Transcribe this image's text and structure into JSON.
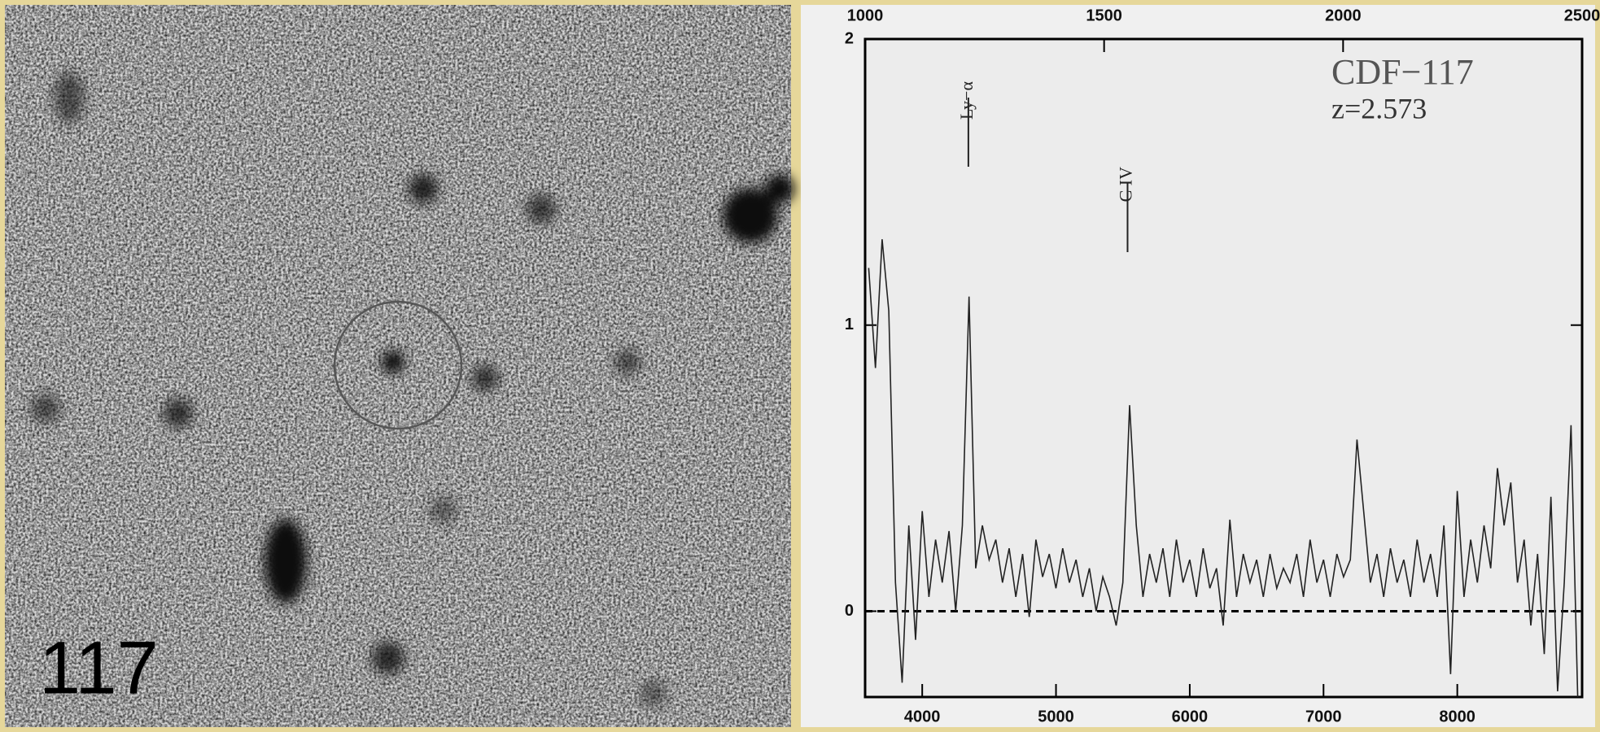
{
  "image_label": "117",
  "chart_data": {
    "type": "line",
    "title": "CDF−117",
    "subtitle": "z=2.573",
    "x": [
      3600,
      3650,
      3700,
      3750,
      3800,
      3850,
      3900,
      3950,
      4000,
      4050,
      4100,
      4150,
      4200,
      4250,
      4300,
      4350,
      4400,
      4450,
      4500,
      4550,
      4600,
      4650,
      4700,
      4750,
      4800,
      4850,
      4900,
      4950,
      5000,
      5050,
      5100,
      5150,
      5200,
      5250,
      5300,
      5350,
      5400,
      5450,
      5500,
      5550,
      5600,
      5650,
      5700,
      5750,
      5800,
      5850,
      5900,
      5950,
      6000,
      6050,
      6100,
      6150,
      6200,
      6250,
      6300,
      6350,
      6400,
      6450,
      6500,
      6550,
      6600,
      6650,
      6700,
      6750,
      6800,
      6850,
      6900,
      6950,
      7000,
      7050,
      7100,
      7150,
      7200,
      7250,
      7300,
      7350,
      7400,
      7450,
      7500,
      7550,
      7600,
      7650,
      7700,
      7750,
      7800,
      7850,
      7900,
      7950,
      8000,
      8050,
      8100,
      8150,
      8200,
      8250,
      8300,
      8350,
      8400,
      8450,
      8500,
      8550,
      8600,
      8650,
      8700,
      8750,
      8800,
      8850,
      8900
    ],
    "values": [
      1.2,
      0.85,
      1.3,
      1.05,
      0.1,
      -0.25,
      0.3,
      -0.1,
      0.35,
      0.05,
      0.25,
      0.1,
      0.28,
      0.0,
      0.3,
      1.1,
      0.15,
      0.3,
      0.18,
      0.25,
      0.1,
      0.22,
      0.05,
      0.2,
      -0.02,
      0.25,
      0.12,
      0.2,
      0.08,
      0.22,
      0.1,
      0.18,
      0.05,
      0.15,
      0.0,
      0.12,
      0.05,
      -0.05,
      0.1,
      0.72,
      0.3,
      0.05,
      0.2,
      0.1,
      0.22,
      0.05,
      0.25,
      0.1,
      0.18,
      0.05,
      0.22,
      0.08,
      0.15,
      -0.05,
      0.32,
      0.05,
      0.2,
      0.1,
      0.18,
      0.05,
      0.2,
      0.08,
      0.15,
      0.1,
      0.2,
      0.05,
      0.25,
      0.1,
      0.18,
      0.05,
      0.2,
      0.12,
      0.18,
      0.6,
      0.35,
      0.1,
      0.2,
      0.05,
      0.22,
      0.1,
      0.18,
      0.05,
      0.25,
      0.1,
      0.2,
      0.05,
      0.3,
      -0.22,
      0.42,
      0.05,
      0.25,
      0.1,
      0.3,
      0.15,
      0.5,
      0.3,
      0.45,
      0.1,
      0.25,
      -0.05,
      0.2,
      -0.15,
      0.4,
      -0.28,
      0.1,
      0.65,
      -0.3
    ],
    "color": "#222222",
    "xlim": [
      3573,
      8933
    ],
    "xticks": [
      4000,
      5000,
      6000,
      7000,
      8000
    ],
    "x2lim": [
      1000,
      2500
    ],
    "x2ticks": [
      1000,
      1500,
      2000,
      2500
    ],
    "ylim": [
      -0.3,
      2
    ],
    "yticks": [
      0,
      1,
      2
    ],
    "hlines": [
      0
    ],
    "annotations": [
      {
        "text": "Ly−α",
        "x": 4345
      },
      {
        "text": "C IV",
        "x": 5535
      }
    ]
  }
}
